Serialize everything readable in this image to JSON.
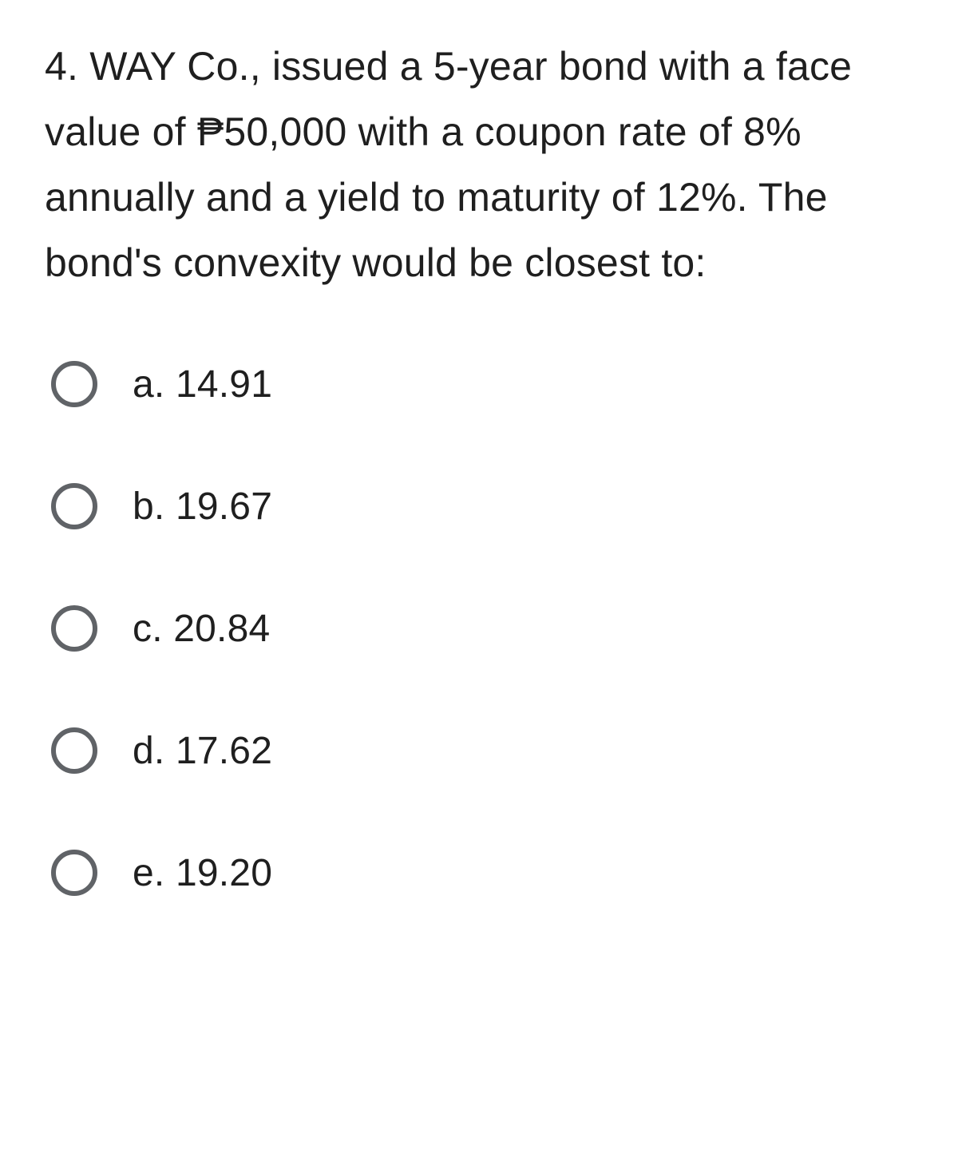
{
  "question": {
    "text": "4. WAY Co., issued a 5-year bond with a face value of ₱50,000 with a coupon rate of 8% annually and a yield to maturity of 12%. The bond's convexity would be closest to:"
  },
  "options": {
    "a": "a. 14.91",
    "b": "b. 19.67",
    "c": "c. 20.84",
    "d": "d. 17.62",
    "e": "e. 19.20"
  },
  "colors": {
    "text": "#1f1f1f",
    "radio_border": "#606367",
    "background": "#ffffff"
  }
}
